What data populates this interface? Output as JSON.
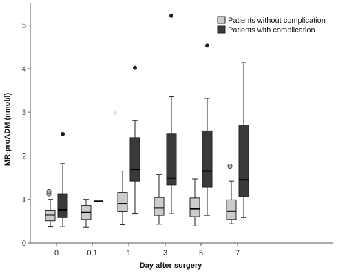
{
  "chart_data": {
    "type": "boxplot",
    "xlabel": "Day after surgery",
    "ylabel": "MR-proADM (nmol/l)",
    "ylim": [
      0,
      5.5
    ],
    "yticks": [
      0,
      1,
      2,
      3,
      4,
      5
    ],
    "categories": [
      "0",
      "0.1",
      "1",
      "3",
      "5",
      "7"
    ],
    "legend_position": "top-right",
    "series": [
      {
        "name": "Patients without complication",
        "color": "#cccccc",
        "boxes": [
          {
            "category": "0",
            "whisker_low": 0.37,
            "q1": 0.51,
            "median": 0.64,
            "q3": 0.75,
            "whisker_high": 1.0,
            "outliers": [
              {
                "value": 1.12,
                "style": "circle"
              },
              {
                "value": 1.18,
                "style": "circle"
              }
            ]
          },
          {
            "category": "0.1",
            "whisker_low": 0.36,
            "q1": 0.54,
            "median": 0.7,
            "q3": 0.86,
            "whisker_high": 1.0,
            "outliers": []
          },
          {
            "category": "1",
            "whisker_low": 0.42,
            "q1": 0.72,
            "median": 0.9,
            "q3": 1.16,
            "whisker_high": 1.65,
            "outliers": [
              {
                "value": 2.98,
                "style": "star"
              }
            ]
          },
          {
            "category": "3",
            "whisker_low": 0.43,
            "q1": 0.63,
            "median": 0.8,
            "q3": 1.04,
            "whisker_high": 1.57,
            "outliers": []
          },
          {
            "category": "5",
            "whisker_low": 0.39,
            "q1": 0.6,
            "median": 0.78,
            "q3": 1.03,
            "whisker_high": 1.47,
            "outliers": []
          },
          {
            "category": "7",
            "whisker_low": 0.44,
            "q1": 0.54,
            "median": 0.73,
            "q3": 0.99,
            "whisker_high": 1.42,
            "outliers": [
              {
                "value": 1.76,
                "style": "circle"
              }
            ]
          }
        ]
      },
      {
        "name": "Patients with complication",
        "color": "#3a3a3a",
        "boxes": [
          {
            "category": "0",
            "whisker_low": 0.38,
            "q1": 0.58,
            "median": 0.76,
            "q3": 1.12,
            "whisker_high": 1.82,
            "outliers": [
              {
                "value": 2.5,
                "style": "dot"
              }
            ]
          },
          {
            "category": "0.1",
            "whisker_low": 0.96,
            "q1": 0.96,
            "median": 0.96,
            "q3": 0.96,
            "whisker_high": 0.96,
            "outliers": []
          },
          {
            "category": "1",
            "whisker_low": 0.67,
            "q1": 1.42,
            "median": 1.69,
            "q3": 2.42,
            "whisker_high": 2.81,
            "outliers": [
              {
                "value": 4.02,
                "style": "dot"
              }
            ]
          },
          {
            "category": "3",
            "whisker_low": 0.68,
            "q1": 1.33,
            "median": 1.49,
            "q3": 2.5,
            "whisker_high": 3.36,
            "outliers": [
              {
                "value": 5.22,
                "style": "dot"
              }
            ]
          },
          {
            "category": "5",
            "whisker_low": 0.63,
            "q1": 1.28,
            "median": 1.65,
            "q3": 2.57,
            "whisker_high": 3.32,
            "outliers": [
              {
                "value": 4.53,
                "style": "dot"
              }
            ]
          },
          {
            "category": "7",
            "whisker_low": 0.58,
            "q1": 1.06,
            "median": 1.45,
            "q3": 2.71,
            "whisker_high": 4.14,
            "outliers": []
          }
        ]
      }
    ]
  }
}
